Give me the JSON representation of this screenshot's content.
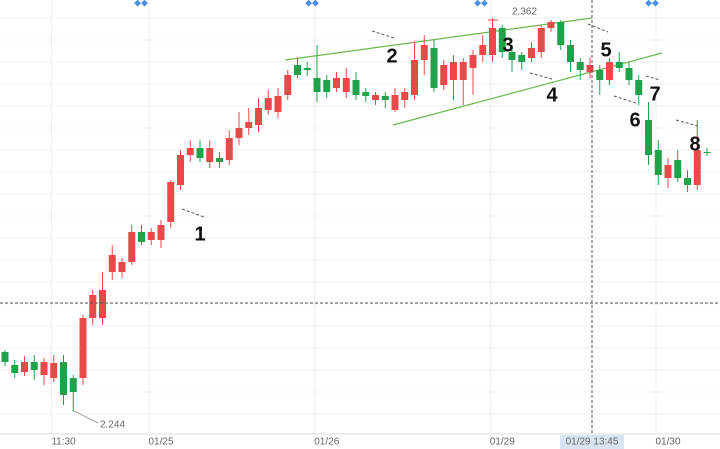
{
  "chart_data": {
    "type": "candlestick",
    "up_color": "#e84a4a",
    "down_color": "#1fa34a",
    "ylim": [
      2.2372,
      2.3674
    ],
    "crosshair_label": "01/29 13:45",
    "wave_labels": [
      "1",
      "2",
      "3",
      "4",
      "5",
      "6",
      "7",
      "8"
    ],
    "categories": [
      null,
      null,
      null,
      null,
      null,
      null,
      "11:30",
      null,
      null,
      null,
      null,
      null,
      null,
      null,
      null,
      null,
      "01/25",
      null,
      null,
      null,
      null,
      null,
      null,
      null,
      null,
      null,
      null,
      null,
      null,
      null,
      null,
      null,
      null,
      "01/26",
      null,
      null,
      null,
      null,
      null,
      null,
      null,
      null,
      null,
      null,
      null,
      null,
      null,
      null,
      null,
      null,
      null,
      "01/29",
      null,
      null,
      null,
      null,
      null,
      null,
      null,
      null,
      null,
      null,
      null,
      null,
      null,
      null,
      null,
      null,
      "01/30",
      null,
      null,
      null,
      null
    ],
    "open": [
      2.2618,
      2.2579,
      2.2558,
      2.2588,
      2.2549,
      2.254,
      2.2588,
      2.254,
      2.254,
      2.272,
      2.272,
      2.2858,
      2.2858,
      2.2888,
      2.2978,
      2.2954,
      2.2954,
      2.3008,
      2.3119,
      2.3209,
      2.323,
      2.3188,
      2.32,
      2.3194,
      2.326,
      2.329,
      2.3299,
      2.3344,
      2.3338,
      2.3389,
      2.3479,
      2.347,
      2.344,
      2.3434,
      2.341,
      2.3398,
      2.3434,
      2.3398,
      2.3374,
      2.3386,
      2.3344,
      2.3374,
      2.3389,
      2.3494,
      2.353,
      2.3419,
      2.3434,
      2.3434,
      2.347,
      2.3509,
      2.3509,
      2.359,
      2.3518,
      2.3509,
      2.35,
      2.3518,
      2.359,
      2.3608,
      2.3539,
      2.3488,
      2.3458,
      2.3464,
      2.3434,
      2.3488,
      2.347,
      2.3434,
      2.3314,
      2.3224,
      2.314,
      2.3194,
      2.314,
      2.3119,
      2.3218
    ],
    "high": [
      2.2624,
      2.2594,
      2.2606,
      2.2609,
      2.26,
      2.2609,
      2.2609,
      2.2549,
      2.2729,
      2.2804,
      2.2858,
      2.2939,
      2.29,
      2.2999,
      2.2999,
      2.299,
      2.3014,
      2.3134,
      2.3224,
      2.3254,
      2.3254,
      2.3254,
      2.3218,
      2.3284,
      2.3338,
      2.335,
      2.338,
      2.3404,
      2.341,
      2.3464,
      2.35,
      2.3488,
      2.3539,
      2.3449,
      2.3458,
      2.347,
      2.3458,
      2.341,
      2.3398,
      2.3398,
      2.341,
      2.341,
      2.3548,
      2.3569,
      2.3554,
      2.3494,
      2.3509,
      2.35,
      2.3524,
      2.3569,
      2.362,
      2.3599,
      2.3539,
      2.3518,
      2.3548,
      2.3599,
      2.3614,
      2.3614,
      2.3554,
      2.35,
      2.35,
      2.3479,
      2.35,
      2.3518,
      2.3488,
      2.3449,
      2.3368,
      2.3254,
      2.32,
      2.3224,
      2.3164,
      2.3314,
      2.323
    ],
    "low": [
      2.2576,
      2.254,
      2.2546,
      2.2534,
      2.2519,
      2.2528,
      2.2459,
      2.244,
      2.2519,
      2.2699,
      2.2699,
      2.2834,
      2.284,
      2.2879,
      2.2939,
      2.2939,
      2.293,
      2.299,
      2.3104,
      2.3188,
      2.3188,
      2.317,
      2.317,
      2.3179,
      2.3239,
      2.3269,
      2.3278,
      2.3329,
      2.332,
      2.3374,
      2.344,
      2.3446,
      2.3368,
      2.338,
      2.3398,
      2.338,
      2.3374,
      2.3368,
      2.3359,
      2.335,
      2.3338,
      2.335,
      2.3374,
      2.3449,
      2.3398,
      2.3404,
      2.3374,
      2.3359,
      2.3389,
      2.3488,
      2.3488,
      2.35,
      2.3458,
      2.3464,
      2.3488,
      2.35,
      2.3578,
      2.3524,
      2.3458,
      2.3434,
      2.344,
      2.3389,
      2.3419,
      2.3458,
      2.3419,
      2.3359,
      2.3179,
      2.3119,
      2.311,
      2.3128,
      2.3098,
      2.3104,
      2.3206
    ],
    "close": [
      2.2588,
      2.2555,
      2.2588,
      2.2564,
      2.2588,
      2.2585,
      2.2489,
      2.2498,
      2.272,
      2.2789,
      2.2804,
      2.2909,
      2.2888,
      2.2978,
      2.2948,
      2.2978,
      2.2999,
      2.3128,
      2.3209,
      2.323,
      2.32,
      2.323,
      2.3188,
      2.326,
      2.329,
      2.3308,
      2.335,
      2.338,
      2.3386,
      2.3449,
      2.3449,
      2.3464,
      2.3398,
      2.3398,
      2.344,
      2.344,
      2.3389,
      2.3386,
      2.3389,
      2.3374,
      2.3389,
      2.3398,
      2.3494,
      2.3539,
      2.341,
      2.3479,
      2.3488,
      2.3488,
      2.3509,
      2.3539,
      2.359,
      2.3518,
      2.3494,
      2.3488,
      2.353,
      2.359,
      2.3608,
      2.3539,
      2.3488,
      2.3464,
      2.3479,
      2.3434,
      2.3488,
      2.347,
      2.3434,
      2.3389,
      2.3209,
      2.3149,
      2.3179,
      2.314,
      2.3119,
      2.3224,
      2.3215
    ]
  }
}
